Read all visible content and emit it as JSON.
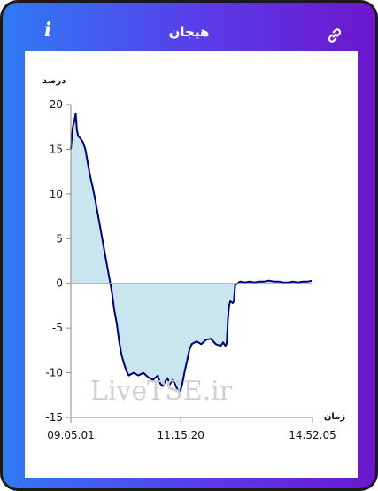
{
  "header": {
    "title": "هیجان",
    "info_icon": "info-icon",
    "link_icon": "link-icon",
    "info_glyph": "i"
  },
  "colors": {
    "gradient_start": "#2f7bf4",
    "gradient_end": "#6d17cc",
    "line": "#00007d",
    "fill": "#c9e5ef"
  },
  "watermark": "LiveTSE.ir",
  "chart_data": {
    "type": "area",
    "ylabel": "درصد",
    "xlabel": "زمان",
    "ylim": [
      -15,
      20
    ],
    "yticks": [
      20,
      15,
      10,
      5,
      0,
      -5,
      -10,
      -15
    ],
    "xticks": [
      "09.05.01",
      "11.15.20",
      "14.52.05"
    ],
    "x_start": "09:05:01",
    "x_end": "14:52:05",
    "baseline": 0,
    "series": [
      {
        "values": [
          [
            0.0,
            15.0
          ],
          [
            0.008,
            17.5
          ],
          [
            0.015,
            18.2
          ],
          [
            0.02,
            19.0
          ],
          [
            0.025,
            17.2
          ],
          [
            0.03,
            16.5
          ],
          [
            0.04,
            16.2
          ],
          [
            0.05,
            15.8
          ],
          [
            0.06,
            15.0
          ],
          [
            0.07,
            13.5
          ],
          [
            0.08,
            12.0
          ],
          [
            0.09,
            10.8
          ],
          [
            0.1,
            9.5
          ],
          [
            0.11,
            8.0
          ],
          [
            0.12,
            6.5
          ],
          [
            0.13,
            5.0
          ],
          [
            0.14,
            3.5
          ],
          [
            0.15,
            2.0
          ],
          [
            0.16,
            0.5
          ],
          [
            0.17,
            -1.0
          ],
          [
            0.18,
            -3.0
          ],
          [
            0.19,
            -4.5
          ],
          [
            0.2,
            -6.5
          ],
          [
            0.21,
            -8.0
          ],
          [
            0.22,
            -9.0
          ],
          [
            0.23,
            -9.8
          ],
          [
            0.24,
            -10.3
          ],
          [
            0.26,
            -10.0
          ],
          [
            0.28,
            -10.3
          ],
          [
            0.3,
            -10.0
          ],
          [
            0.32,
            -10.5
          ],
          [
            0.34,
            -10.8
          ],
          [
            0.36,
            -10.3
          ],
          [
            0.37,
            -11.2
          ],
          [
            0.38,
            -11.5
          ],
          [
            0.39,
            -11.0
          ],
          [
            0.4,
            -10.6
          ],
          [
            0.41,
            -11.3
          ],
          [
            0.42,
            -10.8
          ],
          [
            0.43,
            -11.2
          ],
          [
            0.44,
            -11.8
          ],
          [
            0.45,
            -12.3
          ],
          [
            0.46,
            -11.4
          ],
          [
            0.47,
            -10.0
          ],
          [
            0.48,
            -8.8
          ],
          [
            0.49,
            -7.5
          ],
          [
            0.5,
            -6.8
          ],
          [
            0.52,
            -6.5
          ],
          [
            0.54,
            -6.8
          ],
          [
            0.56,
            -6.3
          ],
          [
            0.58,
            -6.2
          ],
          [
            0.6,
            -6.8
          ],
          [
            0.62,
            -7.0
          ],
          [
            0.63,
            -6.6
          ],
          [
            0.64,
            -7.0
          ],
          [
            0.645,
            -6.7
          ],
          [
            0.65,
            -4.0
          ],
          [
            0.655,
            -2.5
          ],
          [
            0.66,
            -2.0
          ],
          [
            0.67,
            -2.2
          ],
          [
            0.675,
            -2.0
          ],
          [
            0.68,
            -0.2
          ],
          [
            0.7,
            0.2
          ],
          [
            0.72,
            0.1
          ],
          [
            0.74,
            0.2
          ],
          [
            0.76,
            0.1
          ],
          [
            0.78,
            0.2
          ],
          [
            0.8,
            0.2
          ],
          [
            0.82,
            0.3
          ],
          [
            0.84,
            0.2
          ],
          [
            0.86,
            0.2
          ],
          [
            0.88,
            0.1
          ],
          [
            0.9,
            0.1
          ],
          [
            0.92,
            0.2
          ],
          [
            0.94,
            0.1
          ],
          [
            0.96,
            0.2
          ],
          [
            0.98,
            0.2
          ],
          [
            1.0,
            0.3
          ]
        ]
      }
    ]
  }
}
